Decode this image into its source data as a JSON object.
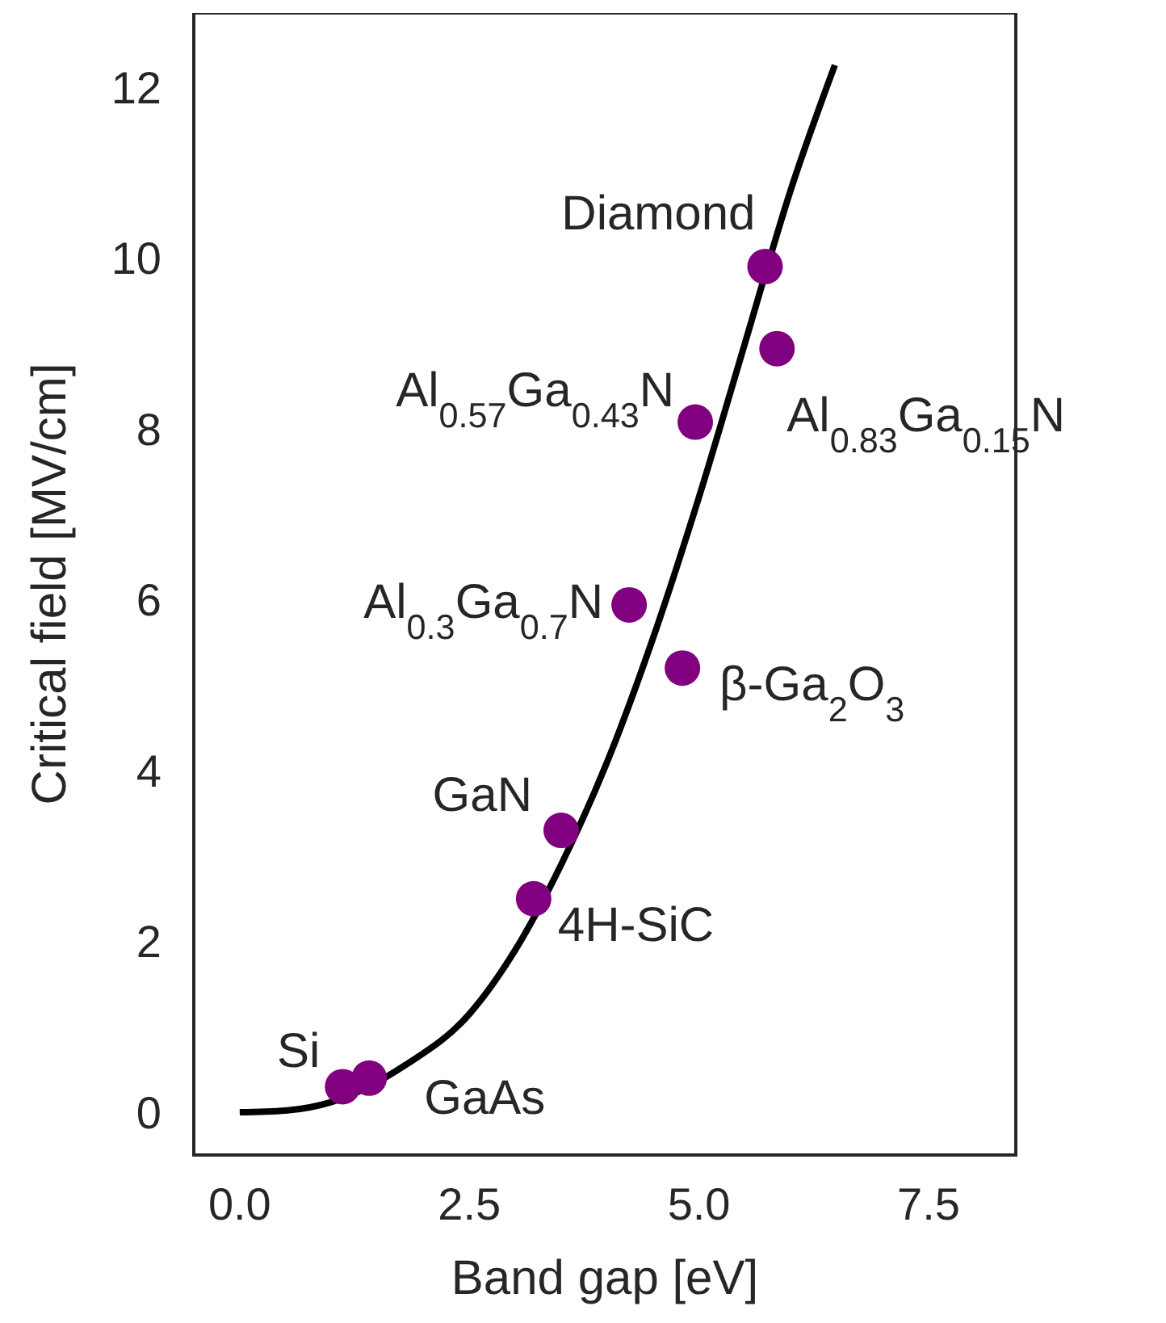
{
  "chart_data": {
    "type": "scatter",
    "xlabel": "Band gap [eV]",
    "ylabel": "Critical field [MV/cm]",
    "xlim": [
      -0.5,
      8.45
    ],
    "ylim": [
      -0.5,
      12.87
    ],
    "xticks": [
      {
        "value": 0,
        "label": "0.0"
      },
      {
        "value": 2.5,
        "label": "2.5"
      },
      {
        "value": 5,
        "label": "5.0"
      },
      {
        "value": 7.5,
        "label": "7.5"
      }
    ],
    "yticks": [
      0,
      2,
      4,
      6,
      8,
      10,
      12
    ],
    "grid": false,
    "series": [
      {
        "color": "#800080",
        "marker": "circle",
        "x": [
          1.12,
          1.41,
          3.2,
          3.5,
          4.24,
          4.82,
          4.96,
          5.72,
          5.85
        ],
        "values": [
          0.3,
          0.4,
          2.5,
          3.3,
          5.94,
          5.2,
          8.08,
          9.9,
          8.94
        ]
      },
      {
        "type": "line",
        "color": "#000000",
        "marker": "none",
        "x": [
          0,
          0.5,
          1,
          1.8,
          2.5,
          3,
          3.5,
          4,
          4.5,
          5,
          5.5,
          6,
          6.48
        ],
        "values": [
          0,
          0.02,
          0.12,
          0.55,
          1.15,
          1.9,
          2.9,
          4.1,
          5.55,
          7.2,
          9.0,
          10.8,
          12.26
        ]
      }
    ],
    "annotations": [
      {
        "text": "Si",
        "x": 1.12,
        "y": 0.3
      },
      {
        "text": "GaAs",
        "x": 1.41,
        "y": 0.4
      },
      {
        "text": "4H-SiC",
        "x": 3.2,
        "y": 2.5
      },
      {
        "text": "GaN",
        "x": 3.5,
        "y": 3.3
      },
      {
        "text": "Al$_{0.3}$Ga$_{0.7}$N",
        "x": 4.24,
        "y": 5.94
      },
      {
        "text": "β-Ga$_{2}$O$_{3}$",
        "x": 4.82,
        "y": 5.2
      },
      {
        "text": "Al$_{0.57}$Ga$_{0.43}$N",
        "x": 4.96,
        "y": 8.08
      },
      {
        "text": "Diamond",
        "x": 5.72,
        "y": 9.9
      },
      {
        "text": "Al$_{0.83}$Ga$_{0.15}$N",
        "x": 5.85,
        "y": 8.94
      }
    ]
  }
}
